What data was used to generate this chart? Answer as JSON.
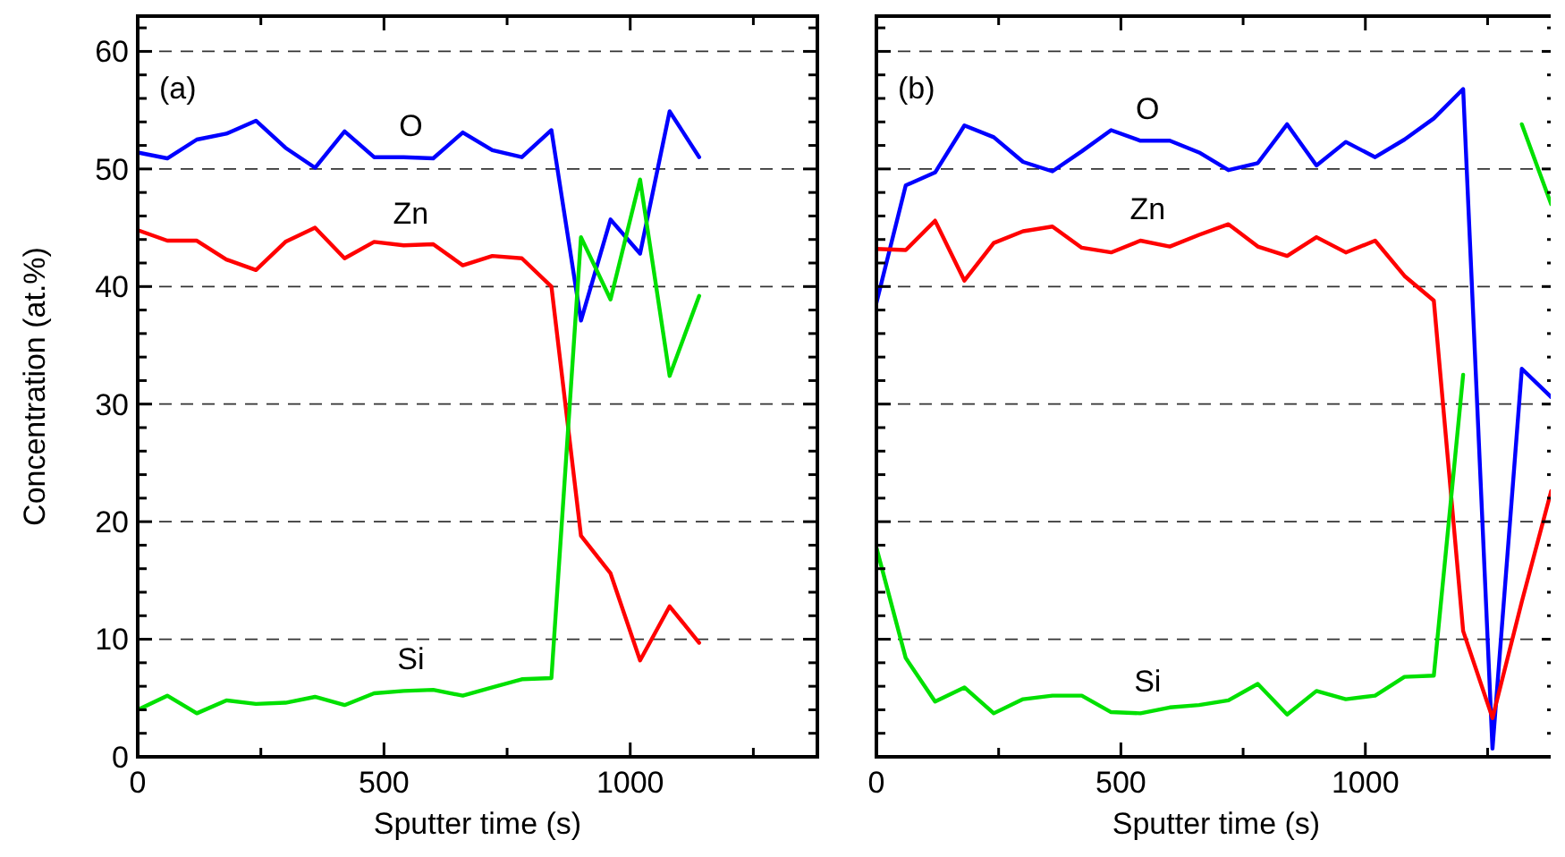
{
  "chart_data": [
    {
      "type": "line",
      "xlabel": "Sputter time (s)",
      "ylabel": "Concentration (at.%)",
      "annotations": [
        "(a)"
      ],
      "x": [
        0,
        60,
        120,
        180,
        240,
        300,
        360,
        420,
        480,
        540,
        600,
        660,
        720,
        780,
        840,
        900,
        960,
        1020,
        1080,
        1140
      ],
      "series": [
        {
          "name": "O",
          "color": "#0000ff",
          "values": [
            51.4,
            50.9,
            52.5,
            53.0,
            54.1,
            51.8,
            50.1,
            53.2,
            51.0,
            51.0,
            50.9,
            53.1,
            51.6,
            51.0,
            53.3,
            37.1,
            45.7,
            42.8,
            54.9,
            51.0
          ]
        },
        {
          "name": "Zn",
          "color": "#ff0000",
          "values": [
            44.8,
            43.9,
            43.9,
            42.3,
            41.4,
            43.8,
            45.0,
            42.4,
            43.8,
            43.5,
            43.6,
            41.8,
            42.6,
            42.4,
            40.0,
            18.8,
            15.6,
            8.2,
            12.8,
            9.7
          ]
        },
        {
          "name": "Si",
          "color": "#00e000",
          "values": [
            4.0,
            5.2,
            3.7,
            4.8,
            4.5,
            4.6,
            5.1,
            4.4,
            5.4,
            5.6,
            5.7,
            5.2,
            5.9,
            6.6,
            6.7,
            44.2,
            38.9,
            49.1,
            32.4,
            39.2
          ]
        }
      ],
      "xlim": [
        0,
        1380
      ],
      "ylim": [
        0,
        63
      ],
      "xticks": [
        0,
        {
          "value": 250,
          "label": null
        },
        500,
        {
          "value": 750,
          "label": null
        },
        1000,
        {
          "value": 1250,
          "label": null
        }
      ],
      "yticks": [
        0,
        {
          "value": 2,
          "label": null
        },
        {
          "value": 4,
          "label": null
        },
        {
          "value": 6,
          "label": null
        },
        {
          "value": 8,
          "label": null
        },
        10,
        {
          "value": 12,
          "label": null
        },
        {
          "value": 14,
          "label": null
        },
        {
          "value": 16,
          "label": null
        },
        {
          "value": 18,
          "label": null
        },
        20,
        {
          "value": 22,
          "label": null
        },
        {
          "value": 24,
          "label": null
        },
        {
          "value": 26,
          "label": null
        },
        {
          "value": 28,
          "label": null
        },
        30,
        {
          "value": 32,
          "label": null
        },
        {
          "value": 34,
          "label": null
        },
        {
          "value": 36,
          "label": null
        },
        {
          "value": 38,
          "label": null
        },
        40,
        {
          "value": 42,
          "label": null
        },
        {
          "value": 44,
          "label": null
        },
        {
          "value": 46,
          "label": null
        },
        {
          "value": 48,
          "label": null
        },
        50,
        {
          "value": 52,
          "label": null
        },
        {
          "value": 54,
          "label": null
        },
        {
          "value": 56,
          "label": null
        },
        {
          "value": 58,
          "label": null
        },
        60,
        {
          "value": 62,
          "label": null
        }
      ],
      "grid": "y",
      "line_style": "solid",
      "marker": "none"
    },
    {
      "type": "line",
      "xlabel": "Sputter time (s)",
      "annotations": [
        "(b)"
      ],
      "x": [
        0,
        60,
        120,
        180,
        240,
        300,
        360,
        420,
        480,
        540,
        600,
        660,
        720,
        780,
        840,
        900,
        960,
        1020,
        1080,
        1140,
        1200,
        1260,
        1320,
        1380
      ],
      "series": [
        {
          "name": "O",
          "color": "#0000ff",
          "values": [
            38.6,
            48.6,
            49.7,
            53.7,
            52.7,
            50.6,
            49.8,
            51.5,
            53.3,
            52.4,
            52.4,
            51.4,
            49.9,
            50.5,
            53.8,
            50.3,
            52.3,
            51.0,
            52.5,
            54.3,
            56.8,
            0.7,
            33.0,
            30.6
          ]
        },
        {
          "name": "Zn",
          "color": "#ff0000",
          "values": [
            43.2,
            43.1,
            45.6,
            40.5,
            43.7,
            44.7,
            45.1,
            43.3,
            42.9,
            43.9,
            43.4,
            44.4,
            45.3,
            43.4,
            42.6,
            44.2,
            42.9,
            43.9,
            40.9,
            38.8,
            10.7,
            3.3,
            13.2,
            22.6
          ]
        },
        {
          "name": "Si",
          "color": "#00e000",
          "values": [
            17.8,
            8.4,
            4.7,
            5.9,
            3.7,
            4.9,
            5.2,
            5.2,
            3.8,
            3.7,
            4.2,
            4.4,
            4.8,
            6.2,
            3.6,
            5.6,
            4.9,
            5.2,
            6.8,
            6.9,
            32.5,
            null,
            53.8,
            47.0
          ]
        }
      ],
      "xlim": [
        0,
        1390
      ],
      "ylim": [
        0,
        63
      ],
      "xticks": [
        0,
        {
          "value": 250,
          "label": null
        },
        500,
        {
          "value": 750,
          "label": null
        },
        1000,
        {
          "value": 1250,
          "label": null
        }
      ],
      "yticks": [
        0,
        {
          "value": 2,
          "label": null
        },
        {
          "value": 4,
          "label": null
        },
        {
          "value": 6,
          "label": null
        },
        {
          "value": 8,
          "label": null
        },
        10,
        {
          "value": 12,
          "label": null
        },
        {
          "value": 14,
          "label": null
        },
        {
          "value": 16,
          "label": null
        },
        {
          "value": 18,
          "label": null
        },
        20,
        {
          "value": 22,
          "label": null
        },
        {
          "value": 24,
          "label": null
        },
        {
          "value": 26,
          "label": null
        },
        {
          "value": 28,
          "label": null
        },
        30,
        {
          "value": 32,
          "label": null
        },
        {
          "value": 34,
          "label": null
        },
        {
          "value": 36,
          "label": null
        },
        {
          "value": 38,
          "label": null
        },
        40,
        {
          "value": 42,
          "label": null
        },
        {
          "value": 44,
          "label": null
        },
        {
          "value": 46,
          "label": null
        },
        {
          "value": 48,
          "label": null
        },
        50,
        {
          "value": 52,
          "label": null
        },
        {
          "value": 54,
          "label": null
        },
        {
          "value": 56,
          "label": null
        },
        {
          "value": 58,
          "label": null
        },
        60,
        {
          "value": 62,
          "label": null
        }
      ],
      "grid": "y",
      "line_style": "solid",
      "marker": "none",
      "tick_labels": "x"
    }
  ]
}
